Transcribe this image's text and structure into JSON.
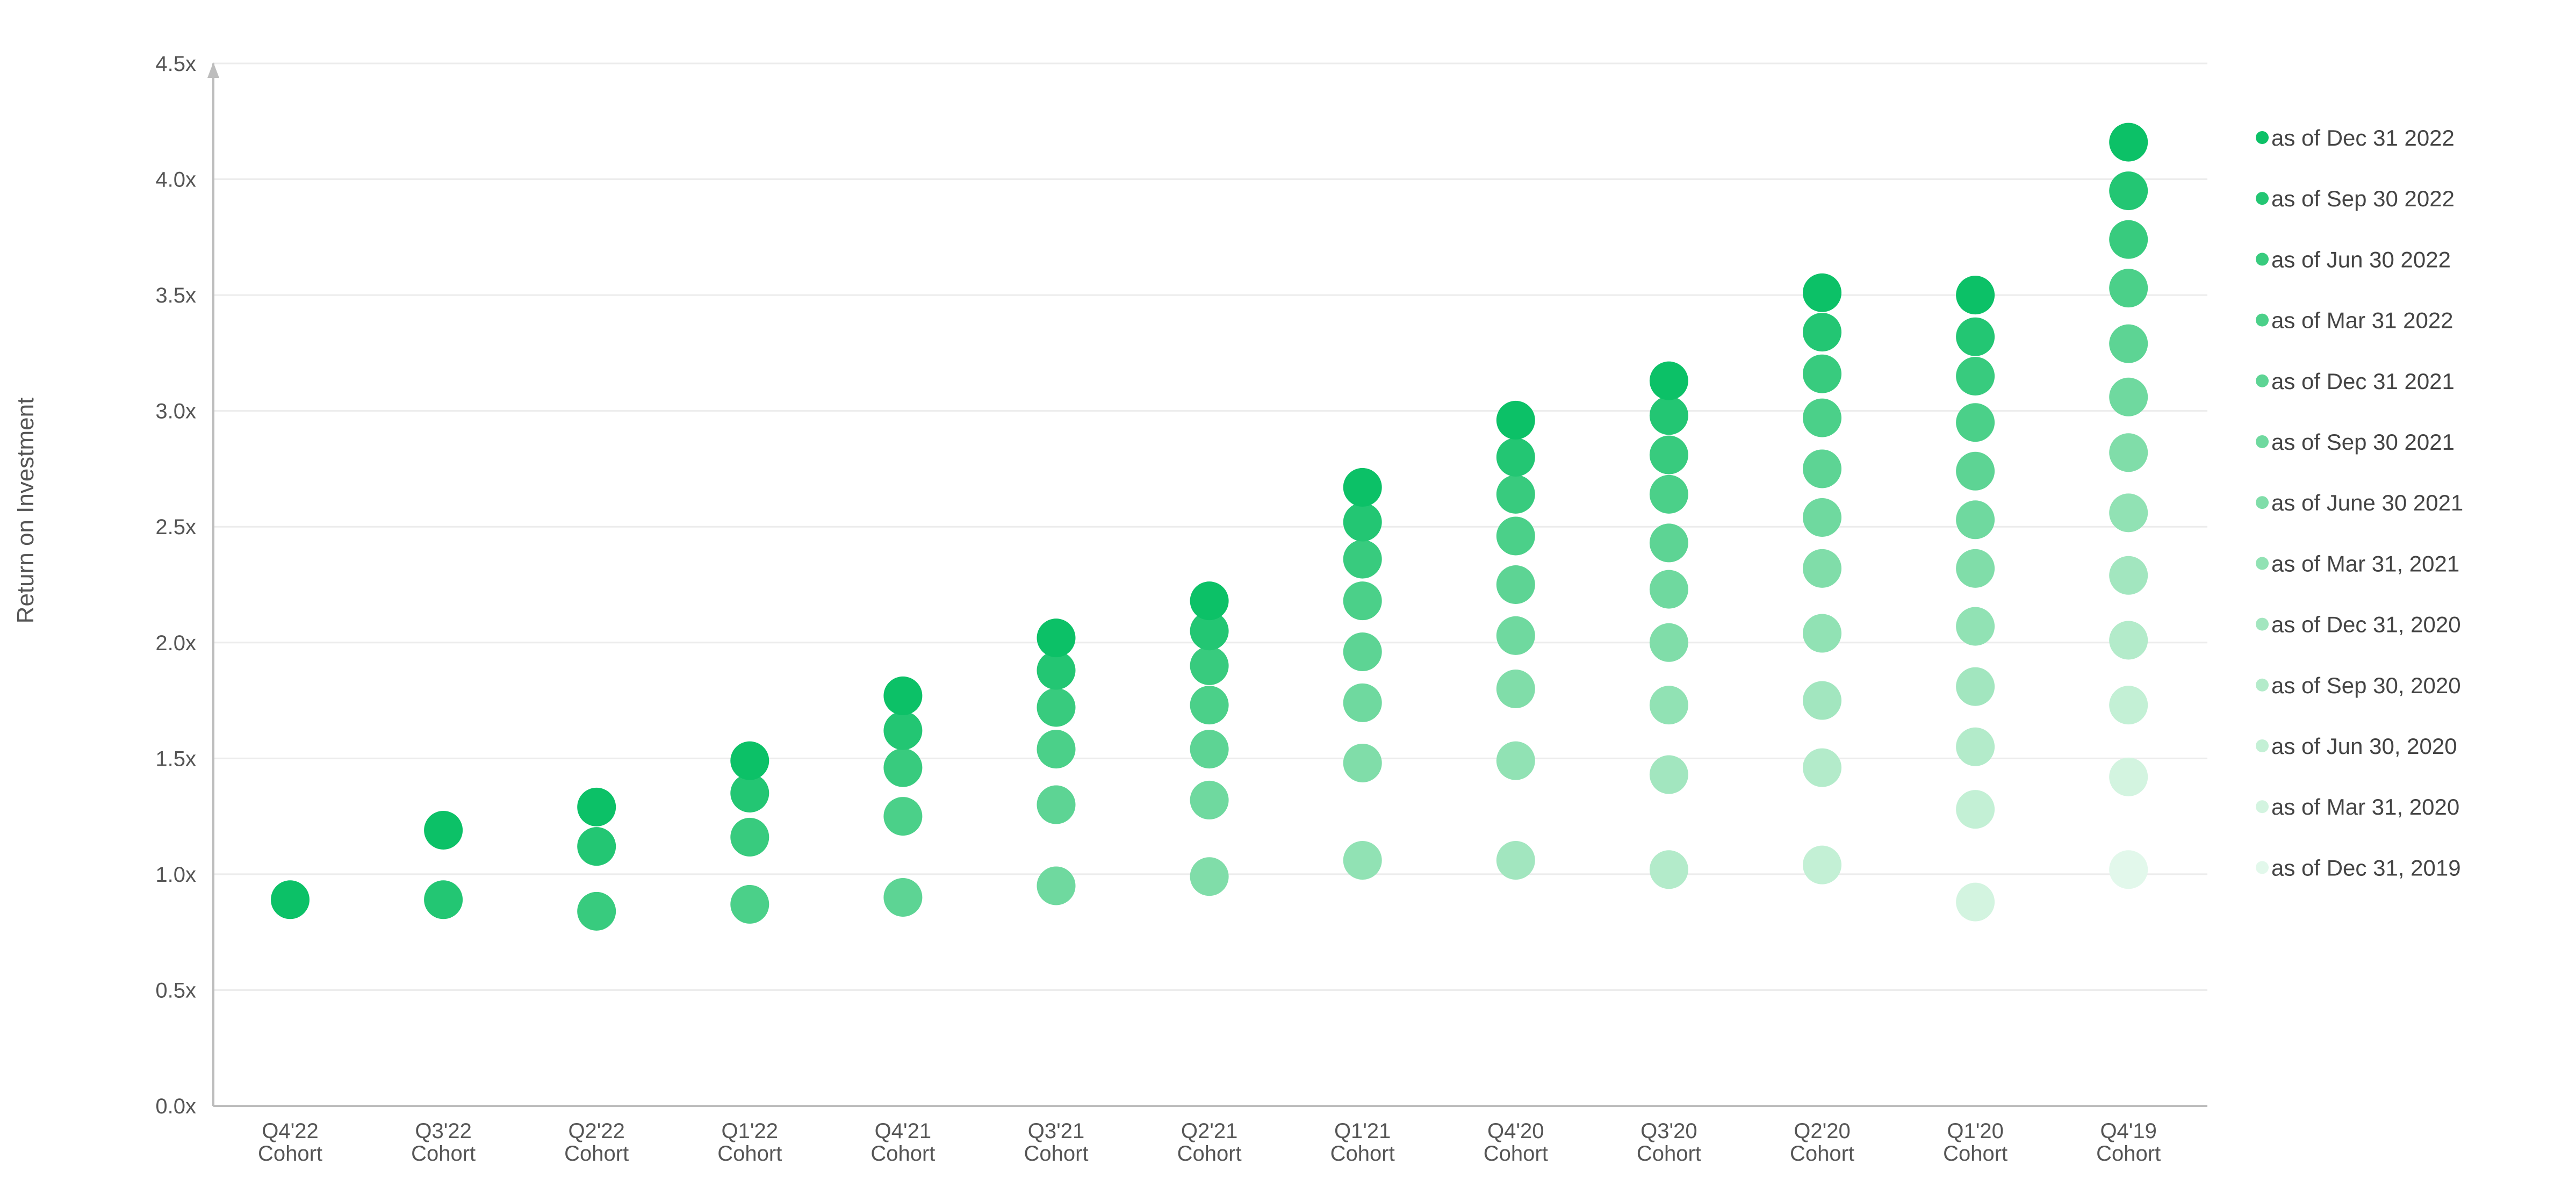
{
  "chart_data": {
    "type": "scatter",
    "title": "",
    "xlabel": "",
    "ylabel": "Return on Investment",
    "ylim": [
      0,
      4.5
    ],
    "yticks": [
      "0.0x",
      "0.5x",
      "1.0x",
      "1.5x",
      "2.0x",
      "2.5x",
      "3.0x",
      "3.5x",
      "4.0x",
      "4.5x"
    ],
    "categories": [
      {
        "line1": "Q4'22",
        "line2": "Cohort"
      },
      {
        "line1": "Q3'22",
        "line2": "Cohort"
      },
      {
        "line1": "Q2'22",
        "line2": "Cohort"
      },
      {
        "line1": "Q1'22",
        "line2": "Cohort"
      },
      {
        "line1": "Q4'21",
        "line2": "Cohort"
      },
      {
        "line1": "Q3'21",
        "line2": "Cohort"
      },
      {
        "line1": "Q2'21",
        "line2": "Cohort"
      },
      {
        "line1": "Q1'21",
        "line2": "Cohort"
      },
      {
        "line1": "Q4'20",
        "line2": "Cohort"
      },
      {
        "line1": "Q3'20",
        "line2": "Cohort"
      },
      {
        "line1": "Q2'20",
        "line2": "Cohort"
      },
      {
        "line1": "Q1'20",
        "line2": "Cohort"
      },
      {
        "line1": "Q4'19",
        "line2": "Cohort"
      }
    ],
    "grid": true,
    "legend_position": "right",
    "series": [
      {
        "name": "as of Dec 31 2022",
        "color": "#0cc167",
        "values": [
          0.89,
          1.19,
          1.29,
          1.49,
          1.77,
          2.02,
          2.18,
          2.67,
          2.96,
          3.13,
          3.51,
          3.5,
          4.16
        ]
      },
      {
        "name": "as of Sep 30 2022",
        "color": "#23c673",
        "values": [
          null,
          0.89,
          1.12,
          1.35,
          1.62,
          1.88,
          2.05,
          2.52,
          2.8,
          2.98,
          3.34,
          3.32,
          3.95
        ]
      },
      {
        "name": "as of Jun 30 2022",
        "color": "#38cb7e",
        "values": [
          null,
          null,
          0.84,
          1.16,
          1.46,
          1.72,
          1.9,
          2.36,
          2.64,
          2.81,
          3.16,
          3.15,
          3.74
        ]
      },
      {
        "name": "as of Mar 31 2022",
        "color": "#4bd089",
        "values": [
          null,
          null,
          null,
          0.87,
          1.25,
          1.54,
          1.73,
          2.18,
          2.46,
          2.64,
          2.97,
          2.95,
          3.53
        ]
      },
      {
        "name": "as of Dec 31 2021",
        "color": "#5dd494",
        "values": [
          null,
          null,
          null,
          null,
          0.9,
          1.3,
          1.54,
          1.96,
          2.25,
          2.43,
          2.75,
          2.74,
          3.29
        ]
      },
      {
        "name": "as of Sep 30 2021",
        "color": "#6fd99f",
        "values": [
          null,
          null,
          null,
          null,
          null,
          0.95,
          1.32,
          1.74,
          2.03,
          2.23,
          2.54,
          2.53,
          3.06
        ]
      },
      {
        "name": "as of June 30 2021",
        "color": "#80dda9",
        "values": [
          null,
          null,
          null,
          null,
          null,
          null,
          0.99,
          1.48,
          1.8,
          2.0,
          2.32,
          2.32,
          2.82
        ]
      },
      {
        "name": "as of Mar 31, 2021",
        "color": "#91e2b4",
        "values": [
          null,
          null,
          null,
          null,
          null,
          null,
          null,
          1.06,
          1.49,
          1.73,
          2.04,
          2.07,
          2.56
        ]
      },
      {
        "name": "as of Dec 31, 2020",
        "color": "#a2e6bf",
        "values": [
          null,
          null,
          null,
          null,
          null,
          null,
          null,
          null,
          1.06,
          1.43,
          1.75,
          1.81,
          2.29
        ]
      },
      {
        "name": "as of Sep 30, 2020",
        "color": "#b3ebca",
        "values": [
          null,
          null,
          null,
          null,
          null,
          null,
          null,
          null,
          null,
          1.02,
          1.46,
          1.55,
          2.01
        ]
      },
      {
        "name": "as of Jun 30, 2020",
        "color": "#c3f0d5",
        "values": [
          null,
          null,
          null,
          null,
          null,
          null,
          null,
          null,
          null,
          null,
          1.04,
          1.28,
          1.73
        ]
      },
      {
        "name": "as of Mar 31, 2020",
        "color": "#d3f4e0",
        "values": [
          null,
          null,
          null,
          null,
          null,
          null,
          null,
          null,
          null,
          null,
          null,
          0.88,
          1.42
        ]
      },
      {
        "name": "as of Dec 31, 2019",
        "color": "#e2f8eb",
        "values": [
          null,
          null,
          null,
          null,
          null,
          null,
          null,
          null,
          null,
          null,
          null,
          null,
          1.02
        ]
      }
    ]
  }
}
